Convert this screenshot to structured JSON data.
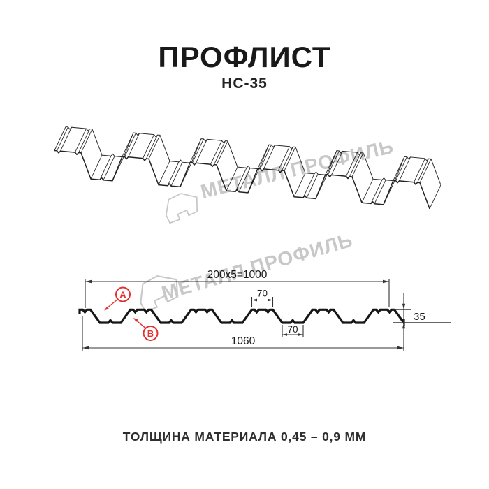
{
  "header": {
    "title": "ПРОФЛИСТ",
    "subtitle": "НС-35"
  },
  "watermark": {
    "brand_text": "МЕТАЛЛ ПРОФИЛЬ"
  },
  "section_diagram": {
    "dim_module_coverage": "200x5=1000",
    "dim_top_flange_width": "70",
    "dim_bottom_flange_width": "70",
    "dim_overall_width": "1060",
    "dim_profile_height": "35",
    "callout_a": "A",
    "callout_b": "B"
  },
  "footer": {
    "material_thickness": "ТОЛЩИНА МАТЕРИАЛА 0,45 – 0,9 ММ"
  },
  "colors": {
    "line": "#2b2b2b",
    "dimension": "#333333",
    "callout_red": "#e23131",
    "watermark_gray": "#c8c8c8"
  }
}
